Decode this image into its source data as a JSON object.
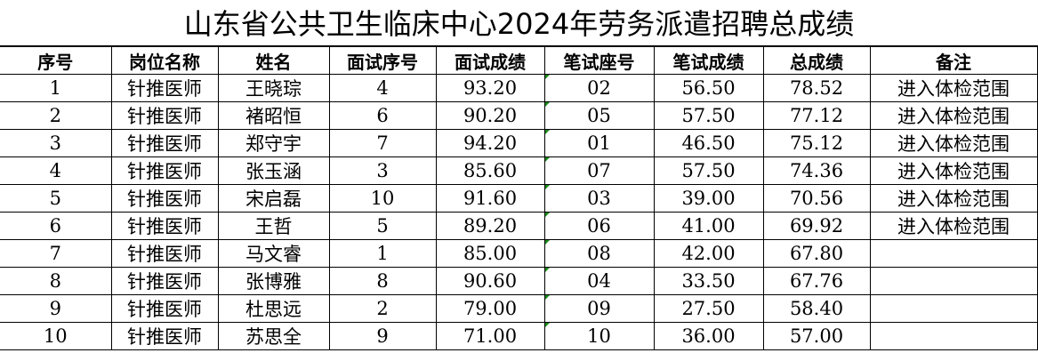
{
  "title": "山东省公共卫生临床中心2024年劳务派遣招聘总成绩",
  "headers": [
    "序号",
    "岗位名称",
    "姓名",
    "面试序号",
    "面试成绩",
    "笔试座号",
    "笔试成绩",
    "总成绩",
    "备注"
  ],
  "rows": [
    [
      "1",
      "针推医师",
      "王晓琮",
      "4",
      "93.20",
      "02",
      "56.50",
      "78.52",
      "进入体检范围"
    ],
    [
      "2",
      "针推医师",
      "褚昭恒",
      "6",
      "90.20",
      "05",
      "57.50",
      "77.12",
      "进入体检范围"
    ],
    [
      "3",
      "针推医师",
      "郑守宇",
      "7",
      "94.20",
      "01",
      "46.50",
      "75.12",
      "进入体检范围"
    ],
    [
      "4",
      "针推医师",
      "张玉涵",
      "3",
      "85.60",
      "07",
      "57.50",
      "74.36",
      "进入体检范围"
    ],
    [
      "5",
      "针推医师",
      "宋启磊",
      "10",
      "91.60",
      "03",
      "39.00",
      "70.56",
      "进入体检范围"
    ],
    [
      "6",
      "针推医师",
      "王哲",
      "5",
      "89.20",
      "06",
      "41.00",
      "69.92",
      "进入体检范围"
    ],
    [
      "7",
      "针推医师",
      "马文睿",
      "1",
      "85.00",
      "08",
      "42.00",
      "67.80",
      ""
    ],
    [
      "8",
      "针推医师",
      "张博雅",
      "8",
      "90.60",
      "04",
      "33.50",
      "67.76",
      ""
    ],
    [
      "9",
      "针推医师",
      "杜思远",
      "2",
      "79.00",
      "09",
      "27.50",
      "58.40",
      ""
    ],
    [
      "10",
      "针推医师",
      "苏思全",
      "9",
      "71.00",
      "10",
      "36.00",
      "57.00",
      ""
    ]
  ],
  "colors": {
    "text_marker": "#1a8a1a"
  }
}
